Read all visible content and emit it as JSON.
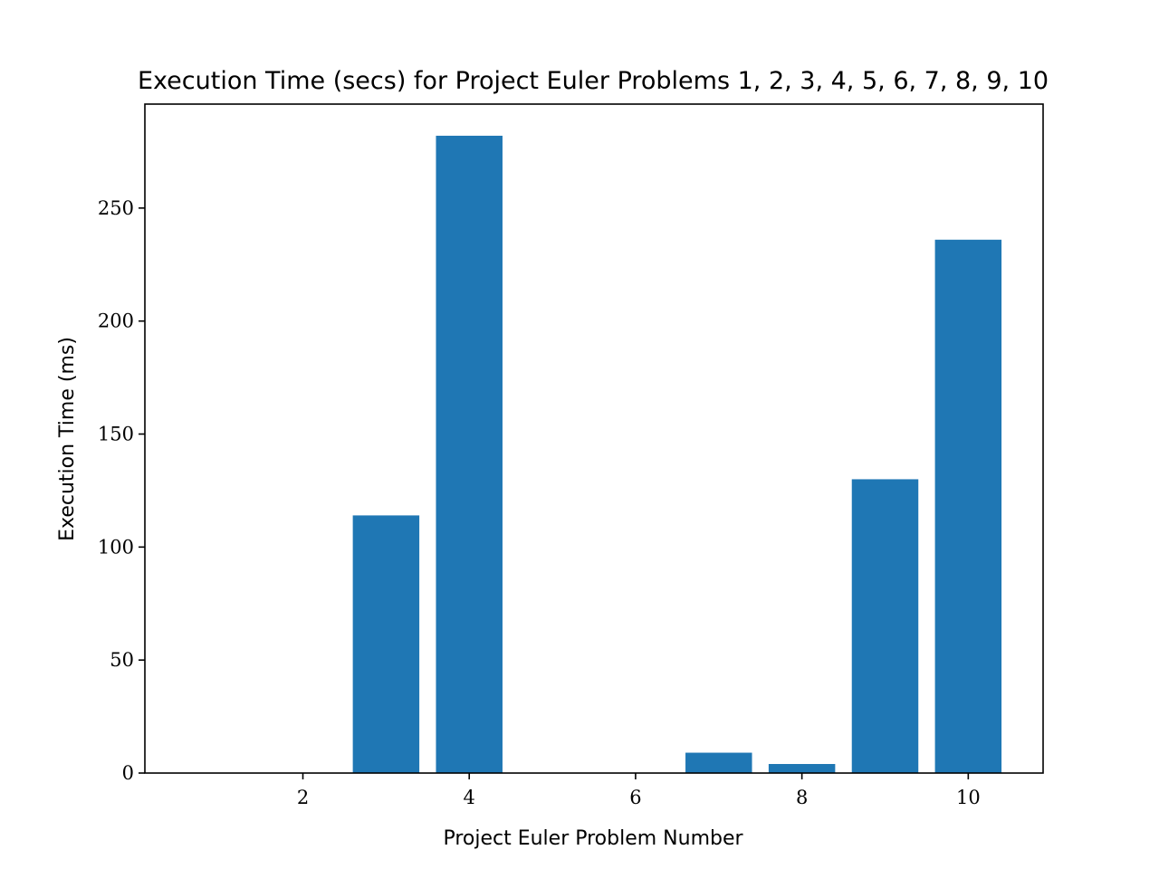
{
  "chart_data": {
    "type": "bar",
    "title": "Execution Time (secs) for Project Euler Problems 1, 2, 3, 4, 5, 6, 7, 8, 9, 10",
    "xlabel": "Project Euler Problem Number",
    "ylabel": "Execution Time (ms)",
    "x": [
      1,
      2,
      3,
      4,
      5,
      6,
      7,
      8,
      9,
      10
    ],
    "values": [
      0,
      0,
      114,
      282,
      0,
      0,
      9,
      4,
      130,
      236
    ],
    "xlim": [
      0.1,
      10.9
    ],
    "ylim": [
      0,
      296
    ],
    "xticks": [
      2,
      4,
      6,
      8,
      10
    ],
    "yticks": [
      0,
      50,
      100,
      150,
      200,
      250
    ],
    "bar_width": 0.8,
    "color": "#1f77b4",
    "grid": false,
    "legend": "none"
  }
}
